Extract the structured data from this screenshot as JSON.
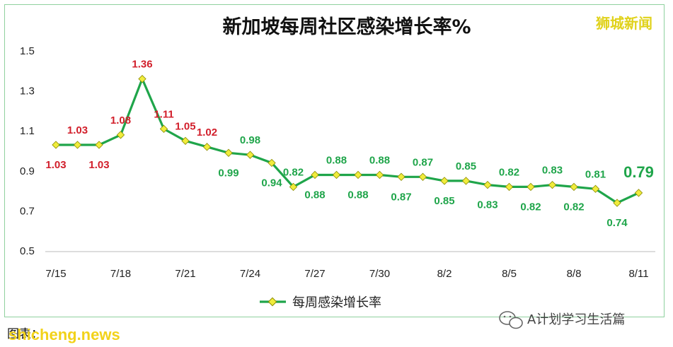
{
  "header": {
    "brand": "狮城新闻"
  },
  "footer": {
    "source_label": "图表：",
    "website": "shicheng.news",
    "wechat_account": "A计划学习生活篇"
  },
  "chart_data": {
    "type": "line",
    "title": "新加坡每周社区感染增长率%",
    "xlabel": "",
    "ylabel": "",
    "ylim": [
      0.5,
      1.5
    ],
    "yticks": [
      "1.5",
      "1.3",
      "1.1",
      "0.9",
      "0.7",
      "0.5"
    ],
    "xticks": [
      "7/15",
      "7/18",
      "7/21",
      "7/24",
      "7/27",
      "7/30",
      "8/2",
      "8/5",
      "8/8",
      "8/11"
    ],
    "categories": [
      "7/15",
      "7/16",
      "7/17",
      "7/18",
      "7/19",
      "7/20",
      "7/21",
      "7/22",
      "7/23",
      "7/24",
      "7/25",
      "7/26",
      "7/27",
      "7/28",
      "7/29",
      "7/30",
      "7/31",
      "8/1",
      "8/2",
      "8/3",
      "8/4",
      "8/5",
      "8/6",
      "8/7",
      "8/8",
      "8/9",
      "8/10",
      "8/11"
    ],
    "series": [
      {
        "name": "每周感染增长率",
        "values": [
          1.03,
          1.03,
          1.03,
          1.08,
          1.36,
          1.11,
          1.05,
          1.02,
          0.99,
          0.98,
          0.94,
          0.82,
          0.88,
          0.88,
          0.88,
          0.88,
          0.87,
          0.87,
          0.85,
          0.85,
          0.83,
          0.82,
          0.82,
          0.83,
          0.82,
          0.81,
          0.74,
          0.79
        ],
        "labels": [
          "1.03",
          "1.03",
          "1.03",
          "1.08",
          "1.36",
          "1.11",
          "1.05",
          "1.02",
          "0.99",
          "0.98",
          "0.94",
          "0.82",
          "0.88",
          "0.88",
          "0.88",
          "0.88",
          "0.87",
          "0.87",
          "0.85",
          "0.85",
          "0.83",
          "0.82",
          "0.82",
          "0.83",
          "0.82",
          "0.81",
          "0.74",
          "0.79"
        ]
      }
    ],
    "grid": false,
    "legend": "bottom",
    "colors": {
      "line": "#1fa54a",
      "marker": "#f0ec3c",
      "marker_edge": "#8a8a00",
      "label_high": "#d21f2b",
      "label_low": "#1fa54a"
    }
  }
}
